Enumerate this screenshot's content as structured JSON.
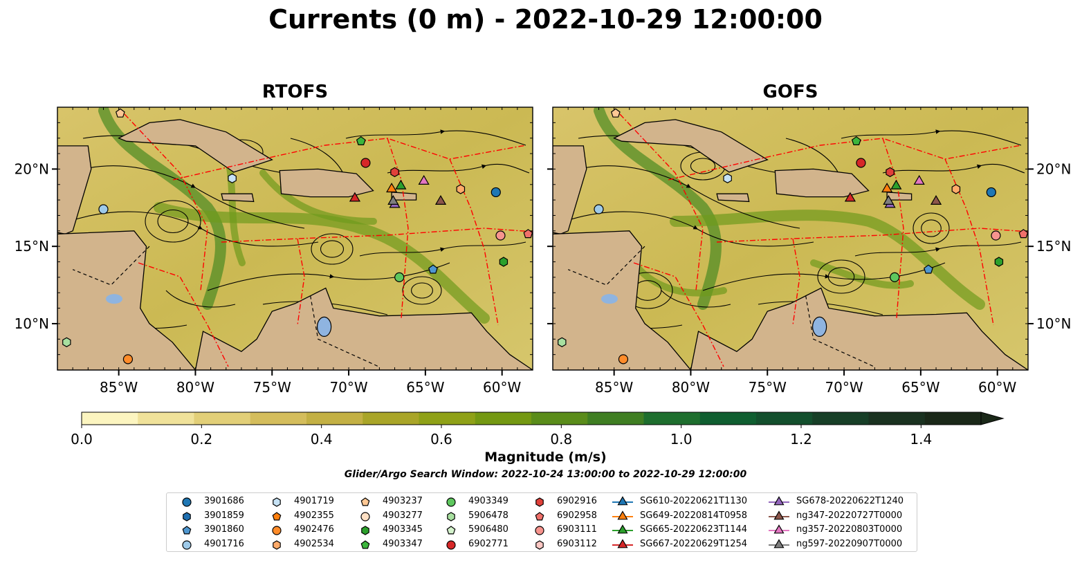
{
  "title": "Currents (0 m) - 2022-10-29 12:00:00",
  "panels": [
    {
      "title": "RTOFS"
    },
    {
      "title": "GOFS"
    }
  ],
  "axes": {
    "x_ticks": [
      "85°W",
      "80°W",
      "75°W",
      "70°W",
      "65°W",
      "60°W"
    ],
    "y_ticks": [
      "20°N",
      "15°N",
      "10°N"
    ],
    "lon_range": [
      -89,
      -58
    ],
    "lat_range": [
      7,
      24
    ]
  },
  "colorbar": {
    "label": "Magnitude (m/s)",
    "ticks": [
      "0.0",
      "0.2",
      "0.4",
      "0.6",
      "0.8",
      "1.0",
      "1.2",
      "1.4"
    ],
    "range": [
      0,
      1.5
    ],
    "colors": [
      "#fcf5c0",
      "#f0e29a",
      "#e2cf78",
      "#d4bd5c",
      "#c3b044",
      "#a9a528",
      "#8fa117",
      "#749812",
      "#5a8c1a",
      "#3f7e22",
      "#1e6e2e",
      "#0f5e30",
      "#134f2d",
      "#173f27",
      "#1a3220",
      "#1a2818"
    ]
  },
  "search_window": "Glider/Argo Search Window: 2022-10-24 13:00:00 to 2022-10-29 12:00:00",
  "colors": {
    "land": "#d2b48c",
    "lakes": "#8fb4e0",
    "rivers": "#9fb8d8",
    "eez": "#ff0000"
  },
  "legend": [
    {
      "label": "3901686",
      "marker": "circle",
      "color": "#1f77b4"
    },
    {
      "label": "3901859",
      "marker": "hexagon",
      "color": "#1f6fb0"
    },
    {
      "label": "3901860",
      "marker": "pentagon",
      "color": "#4f97d0"
    },
    {
      "label": "4901716",
      "marker": "circle",
      "color": "#9ecae9"
    },
    {
      "label": "4901719",
      "marker": "hexagon",
      "color": "#c6e2f5"
    },
    {
      "label": "4902355",
      "marker": "pentagon",
      "color": "#ff7f0e"
    },
    {
      "label": "4902476",
      "marker": "circle",
      "color": "#ff8c2a"
    },
    {
      "label": "4902534",
      "marker": "hexagon",
      "color": "#ffab6a"
    },
    {
      "label": "4903237",
      "marker": "pentagon",
      "color": "#ffc894"
    },
    {
      "label": "4903277",
      "marker": "circle",
      "color": "#ffe0c4"
    },
    {
      "label": "4903345",
      "marker": "hexagon",
      "color": "#2ca02c"
    },
    {
      "label": "4903347",
      "marker": "pentagon",
      "color": "#3cb53c"
    },
    {
      "label": "4903349",
      "marker": "circle",
      "color": "#5ec75e"
    },
    {
      "label": "5906478",
      "marker": "hexagon",
      "color": "#a8e0a0"
    },
    {
      "label": "5906480",
      "marker": "pentagon",
      "color": "#d4f2cc"
    },
    {
      "label": "6902771",
      "marker": "circle",
      "color": "#d62728"
    },
    {
      "label": "6902916",
      "marker": "hexagon",
      "color": "#e0403a"
    },
    {
      "label": "6902958",
      "marker": "pentagon",
      "color": "#f0706a"
    },
    {
      "label": "6903111",
      "marker": "circle",
      "color": "#f7948e"
    },
    {
      "label": "6903112",
      "marker": "hexagon",
      "color": "#fdc8c4"
    },
    {
      "label": "SG610-20220621T1130",
      "marker": "triangle",
      "color": "#1f77b4"
    },
    {
      "label": "SG649-20220814T0958",
      "marker": "triangle",
      "color": "#ff7f0e"
    },
    {
      "label": "SG665-20220623T1144",
      "marker": "triangle",
      "color": "#2ca02c"
    },
    {
      "label": "SG667-20220629T1254",
      "marker": "triangle",
      "color": "#d62728"
    },
    {
      "label": "SG678-20220622T1240",
      "marker": "triangle",
      "color": "#9467bd"
    },
    {
      "label": "ng347-20220727T0000",
      "marker": "triangle",
      "color": "#8c564b"
    },
    {
      "label": "ng357-20220803T0000",
      "marker": "triangle",
      "color": "#e377c2"
    },
    {
      "label": "ng597-20220907T0000",
      "marker": "triangle",
      "color": "#7f7f7f"
    }
  ],
  "platform_positions": [
    {
      "id": "3901686",
      "lon": -60.4,
      "lat": 18.5
    },
    {
      "id": "3901860",
      "lon": -64.5,
      "lat": 13.5
    },
    {
      "id": "4901716",
      "lon": -86.0,
      "lat": 17.4
    },
    {
      "id": "4901719",
      "lon": -77.6,
      "lat": 19.4
    },
    {
      "id": "4902476",
      "lon": -84.4,
      "lat": 7.7
    },
    {
      "id": "4902534",
      "lon": -62.7,
      "lat": 18.7
    },
    {
      "id": "4903237",
      "lon": -84.9,
      "lat": 23.6
    },
    {
      "id": "4903345",
      "lon": -59.9,
      "lat": 14.0
    },
    {
      "id": "4903347",
      "lon": -69.2,
      "lat": 21.8
    },
    {
      "id": "4903349",
      "lon": -66.7,
      "lat": 13.0
    },
    {
      "id": "5906478",
      "lon": -88.4,
      "lat": 8.8
    },
    {
      "id": "6902771",
      "lon": -68.9,
      "lat": 20.4
    },
    {
      "id": "6902916",
      "lon": -67.0,
      "lat": 19.8
    },
    {
      "id": "6902958",
      "lon": -58.3,
      "lat": 15.8
    },
    {
      "id": "6903111",
      "lon": -60.1,
      "lat": 15.7
    },
    {
      "id": "SG649-20220814T0958",
      "lon": -67.2,
      "lat": 18.7
    },
    {
      "id": "SG665-20220623T1144",
      "lon": -66.6,
      "lat": 18.9
    },
    {
      "id": "SG667-20220629T1254",
      "lon": -69.6,
      "lat": 18.1
    },
    {
      "id": "SG678-20220622T1240",
      "lon": -67.0,
      "lat": 17.7
    },
    {
      "id": "ng347-20220727T0000",
      "lon": -64.0,
      "lat": 17.9
    },
    {
      "id": "ng357-20220803T0000",
      "lon": -65.1,
      "lat": 19.2
    },
    {
      "id": "ng597-20220907T0000",
      "lon": -67.1,
      "lat": 17.9
    }
  ]
}
